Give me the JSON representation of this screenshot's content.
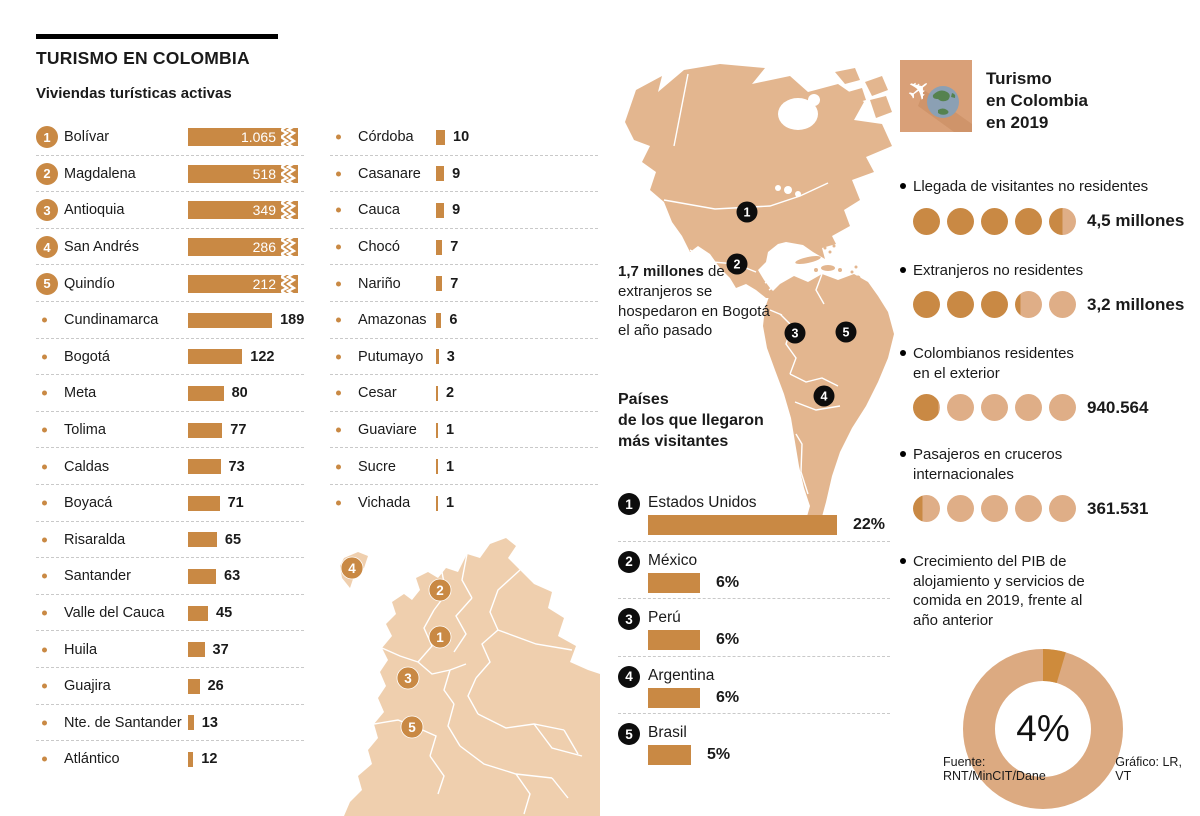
{
  "header": {
    "title": "TURISMO EN COLOMBIA",
    "subtitle": "Viviendas turísticas activas"
  },
  "chart_data": [
    {
      "id": "viviendas",
      "type": "bar",
      "title": "Viviendas turísticas activas",
      "col1": [
        {
          "rank": 1,
          "label": "Bolívar",
          "value": 1065,
          "display": "1.065",
          "truncated": true
        },
        {
          "rank": 2,
          "label": "Magdalena",
          "value": 518,
          "display": "518",
          "truncated": true
        },
        {
          "rank": 3,
          "label": "Antioquia",
          "value": 349,
          "display": "349",
          "truncated": true
        },
        {
          "rank": 4,
          "label": "San Andrés",
          "value": 286,
          "display": "286",
          "truncated": true
        },
        {
          "rank": 5,
          "label": "Quindío",
          "value": 212,
          "display": "212",
          "truncated": true
        },
        {
          "label": "Cundinamarca",
          "value": 189,
          "display": "189"
        },
        {
          "label": "Bogotá",
          "value": 122,
          "display": "122"
        },
        {
          "label": "Meta",
          "value": 80,
          "display": "80"
        },
        {
          "label": "Tolima",
          "value": 77,
          "display": "77"
        },
        {
          "label": "Caldas",
          "value": 73,
          "display": "73"
        },
        {
          "label": "Boyacá",
          "value": 71,
          "display": "71"
        },
        {
          "label": "Risaralda",
          "value": 65,
          "display": "65"
        },
        {
          "label": "Santander",
          "value": 63,
          "display": "63"
        },
        {
          "label": "Valle del Cauca",
          "value": 45,
          "display": "45"
        },
        {
          "label": "Huila",
          "value": 37,
          "display": "37"
        },
        {
          "label": "Guajira",
          "value": 26,
          "display": "26"
        },
        {
          "label": "Nte. de Santander",
          "value": 13,
          "display": "13"
        },
        {
          "label": "Atlántico",
          "value": 12,
          "display": "12"
        }
      ],
      "col2": [
        {
          "label": "Córdoba",
          "value": 10,
          "display": "10"
        },
        {
          "label": "Casanare",
          "value": 9,
          "display": "9"
        },
        {
          "label": "Cauca",
          "value": 9,
          "display": "9"
        },
        {
          "label": "Chocó",
          "value": 7,
          "display": "7"
        },
        {
          "label": "Nariño",
          "value": 7,
          "display": "7"
        },
        {
          "label": "Amazonas",
          "value": 6,
          "display": "6"
        },
        {
          "label": "Putumayo",
          "value": 3,
          "display": "3"
        },
        {
          "label": "Cesar",
          "value": 2,
          "display": "2"
        },
        {
          "label": "Guaviare",
          "value": 1,
          "display": "1"
        },
        {
          "label": "Sucre",
          "value": 1,
          "display": "1"
        },
        {
          "label": "Vichada",
          "value": 1,
          "display": "1"
        }
      ]
    },
    {
      "id": "paises",
      "type": "bar",
      "title": "Países de los que llegaron más visitantes",
      "items": [
        {
          "rank": 1,
          "label": "Estados Unidos",
          "value": 22,
          "display": "22%"
        },
        {
          "rank": 2,
          "label": "México",
          "value": 6,
          "display": "6%"
        },
        {
          "rank": 3,
          "label": "Perú",
          "value": 6,
          "display": "6%"
        },
        {
          "rank": 4,
          "label": "Argentina",
          "value": 6,
          "display": "6%"
        },
        {
          "rank": 5,
          "label": "Brasil",
          "value": 5,
          "display": "5%"
        }
      ]
    },
    {
      "id": "turismo2019",
      "type": "pictogram",
      "title": "Turismo en Colombia en 2019",
      "items": [
        {
          "label": "Llegada de visitantes no residentes",
          "display": "4,5 millones",
          "value_millions": 4.5
        },
        {
          "label": "Extranjeros no residentes",
          "display": "3,2 millones",
          "value_millions": 3.2
        },
        {
          "label": "Colombianos residentes\nen el exterior",
          "display": "940.564",
          "value_millions": 0.94
        },
        {
          "label": "Pasajeros en cruceros\ninternacionales",
          "display": "361.531",
          "value_millions": 0.36
        }
      ]
    },
    {
      "id": "pib",
      "type": "donut",
      "label": "Crecimiento del PIB de\nalojamiento y servicios de\ncomida en 2019, frente al\naño anterior",
      "value_pct": 4,
      "display": "4%"
    }
  ],
  "nota": {
    "bold": "1,7 millones",
    "rest": " de extranjeros se hospedaron en Bogotá el año pasado"
  },
  "paises_heading": "Países\nde los que llegaron\nmás visitantes",
  "right_title": "Turismo\nen Colombia\nen 2019",
  "icon": "airplane-globe-icon",
  "maps": {
    "americas_markers": [
      "1",
      "2",
      "3",
      "4",
      "5"
    ],
    "colombia_markers": [
      "1",
      "2",
      "3",
      "4",
      "5"
    ]
  },
  "footer": {
    "fuente": "Fuente: RNT/MinCIT/Dane",
    "grafico": "Gráfico: LR, VT"
  },
  "colors": {
    "bar": "#C98944",
    "light_circle": "#DFAE87",
    "donut_ring": "#DCAA81",
    "donut_wedge": "#CE8B3C",
    "americas_map": "#E3B68F",
    "colombia_map": "#EFCFAE"
  }
}
